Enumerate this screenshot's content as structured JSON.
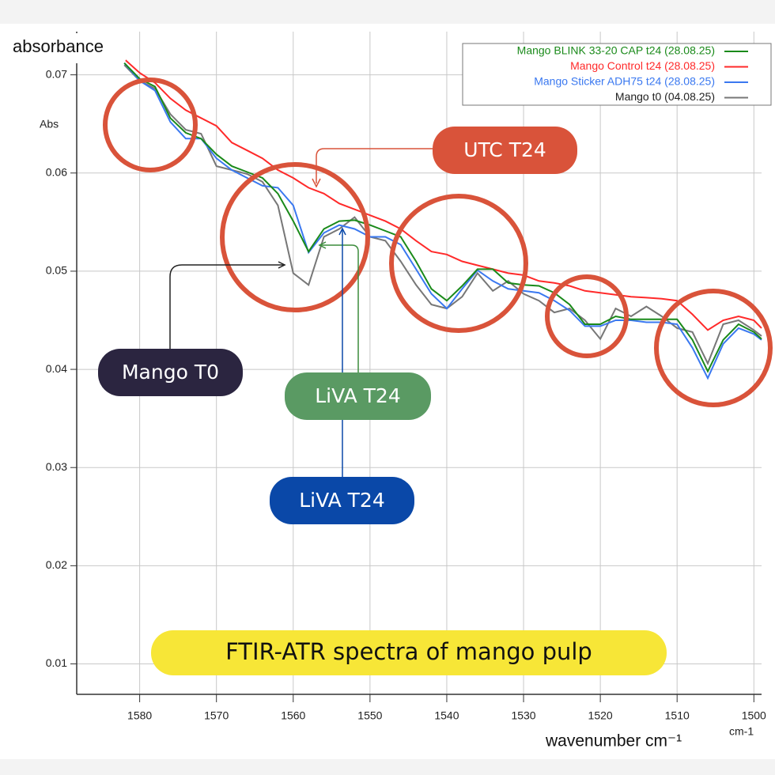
{
  "chart_data": {
    "type": "line",
    "title": "FTIR-ATR spectra of mango pulp",
    "y_label": "absorbance",
    "y_unit": "Abs",
    "x_label": "wavenumber cm⁻¹",
    "x_unit": "cm-1",
    "x": [
      1582,
      1580,
      1578,
      1576,
      1574,
      1572,
      1570,
      1568,
      1566,
      1564,
      1562,
      1560,
      1558,
      1556,
      1554,
      1552,
      1550,
      1548,
      1546,
      1544,
      1542,
      1540,
      1538,
      1536,
      1534,
      1532,
      1530,
      1528,
      1526,
      1524,
      1522,
      1520,
      1518,
      1516,
      1514,
      1512,
      1510,
      1508,
      1506,
      1504,
      1502,
      1500,
      1499
    ],
    "series": [
      {
        "name": "Mango BLINK 33-20 CAP t24 (28.08.25)",
        "color": "#1a8a1a",
        "values": [
          0.0712,
          0.0696,
          0.0688,
          0.0656,
          0.0641,
          0.0635,
          0.0619,
          0.0607,
          0.0601,
          0.0595,
          0.0579,
          0.0551,
          0.052,
          0.0543,
          0.0551,
          0.0552,
          0.0547,
          0.0541,
          0.0535,
          0.051,
          0.0482,
          0.047,
          0.0485,
          0.0502,
          0.0502,
          0.0488,
          0.0486,
          0.0485,
          0.0478,
          0.0466,
          0.0446,
          0.0446,
          0.0454,
          0.0451,
          0.0451,
          0.0451,
          0.0451,
          0.043,
          0.0398,
          0.043,
          0.0446,
          0.0438,
          0.0431
        ]
      },
      {
        "name": "Mango Control t24 (28.08.25)",
        "color": "#ff2a2a",
        "values": [
          0.0716,
          0.0702,
          0.0692,
          0.0676,
          0.0664,
          0.0656,
          0.0648,
          0.0631,
          0.0623,
          0.0615,
          0.0603,
          0.0595,
          0.0585,
          0.0579,
          0.0569,
          0.0563,
          0.0557,
          0.0551,
          0.0543,
          0.0531,
          0.052,
          0.0517,
          0.051,
          0.0506,
          0.0502,
          0.0498,
          0.0496,
          0.049,
          0.0488,
          0.0485,
          0.048,
          0.0478,
          0.0476,
          0.0474,
          0.0473,
          0.0472,
          0.047,
          0.0456,
          0.044,
          0.045,
          0.0454,
          0.045,
          0.0442
        ]
      },
      {
        "name": "Mango Sticker ADH75 t24 (28.08.25)",
        "color": "#3a78f0",
        "values": [
          0.0712,
          0.0694,
          0.0684,
          0.0652,
          0.0635,
          0.0635,
          0.0615,
          0.0603,
          0.0595,
          0.0587,
          0.0585,
          0.0567,
          0.0519,
          0.0539,
          0.0547,
          0.0543,
          0.0535,
          0.0535,
          0.0527,
          0.0502,
          0.0477,
          0.0462,
          0.0482,
          0.0501,
          0.049,
          0.0482,
          0.048,
          0.0478,
          0.047,
          0.046,
          0.0444,
          0.0444,
          0.045,
          0.045,
          0.0448,
          0.0448,
          0.0446,
          0.0422,
          0.0391,
          0.0426,
          0.0442,
          0.0436,
          0.043
        ]
      },
      {
        "name": "Mango t0 (04.08.25)",
        "color": "#777777",
        "values": [
          0.071,
          0.0694,
          0.0686,
          0.066,
          0.0644,
          0.064,
          0.0607,
          0.0603,
          0.0599,
          0.0591,
          0.0567,
          0.0498,
          0.0486,
          0.0535,
          0.0543,
          0.0555,
          0.0535,
          0.0531,
          0.051,
          0.0486,
          0.0466,
          0.0462,
          0.0474,
          0.0498,
          0.048,
          0.049,
          0.0477,
          0.047,
          0.0458,
          0.0462,
          0.045,
          0.0431,
          0.0462,
          0.0454,
          0.0464,
          0.0454,
          0.0442,
          0.0438,
          0.0406,
          0.0446,
          0.045,
          0.044,
          0.0434
        ]
      }
    ],
    "xlim": [
      1588.2,
      1499
    ],
    "ylim": [
      0.0069,
      0.0744
    ],
    "xticks": [
      1580,
      1570,
      1560,
      1550,
      1540,
      1530,
      1520,
      1510,
      1500
    ],
    "yticks": [
      0.01,
      0.02,
      0.03,
      0.04,
      0.05,
      0.06,
      0.07
    ],
    "grid": true,
    "legend": "top-right",
    "annotations": [
      "UTC T24",
      "Mango T0",
      "LiVA T24",
      "LiVA T24"
    ]
  }
}
